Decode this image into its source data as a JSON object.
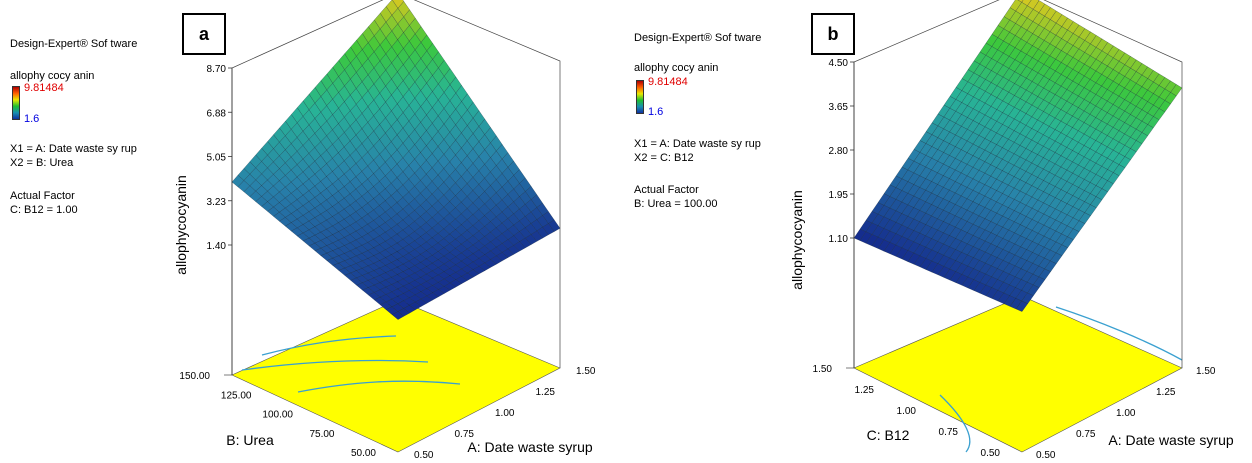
{
  "panels": [
    {
      "label": "a",
      "software": "Design-Expert® Sof tware",
      "response": "allophy cocy anin",
      "color_max": "9.81484",
      "color_min": "1.6",
      "x1": "X1 = A: Date waste sy rup",
      "x2": "X2 = B: Urea",
      "actual_title": "Actual Factor",
      "actual_value": "C: B12 = 1.00"
    },
    {
      "label": "b",
      "software": "Design-Expert® Sof tware",
      "response": "allophy cocy anin",
      "color_max": "9.81484",
      "color_min": "1.6",
      "x1": "X1 = A: Date waste sy rup",
      "x2": "X2 = C: B12",
      "actual_title": "Actual Factor",
      "actual_value": "B: Urea = 100.00"
    }
  ],
  "colors": {
    "surface_low": "#1a3a9a",
    "surface_mid": "#2aa8b8",
    "surface_high": "#e0c020",
    "floor": "#ffff00",
    "contour": "#3aa0d0"
  },
  "chart_data": [
    {
      "type": "surface",
      "zlabel": "allophycocyanin",
      "xlabel": "A: Date waste syrup",
      "ylabel": "B: Urea",
      "x_ticks": [
        "0.50",
        "0.75",
        "1.00",
        "1.25",
        "1.50"
      ],
      "y_ticks": [
        "50.00",
        "75.00",
        "100.00",
        "125.00",
        "150.00"
      ],
      "z_ticks": [
        "1.40",
        "3.23",
        "5.05",
        "6.88",
        "8.70"
      ],
      "xlim": [
        0.5,
        1.5
      ],
      "ylim": [
        50,
        150
      ],
      "zlim": [
        1.4,
        8.7
      ],
      "corners": {
        "x_min_y_min": 1.5,
        "x_max_y_min": 1.8,
        "x_min_y_max": 4.0,
        "x_max_y_max": 8.7
      },
      "min_value": 1.4
    },
    {
      "type": "surface",
      "zlabel": "allophycocyanin",
      "xlabel": "A: Date waste syrup",
      "ylabel": "C: B12",
      "x_ticks": [
        "0.50",
        "0.75",
        "1.00",
        "1.25",
        "1.50"
      ],
      "y_ticks": [
        "0.50",
        "0.75",
        "1.00",
        "1.25",
        "1.50"
      ],
      "z_ticks": [
        "1.10",
        "1.95",
        "2.80",
        "3.65",
        "4.50"
      ],
      "xlim": [
        0.5,
        1.5
      ],
      "ylim": [
        0.5,
        1.5
      ],
      "zlim": [
        1.1,
        4.5
      ],
      "corners": {
        "x_min_y_min": 1.3,
        "x_max_y_min": 4.0,
        "x_min_y_max": 1.1,
        "x_max_y_max": 4.5
      },
      "min_value": 1.1
    }
  ]
}
